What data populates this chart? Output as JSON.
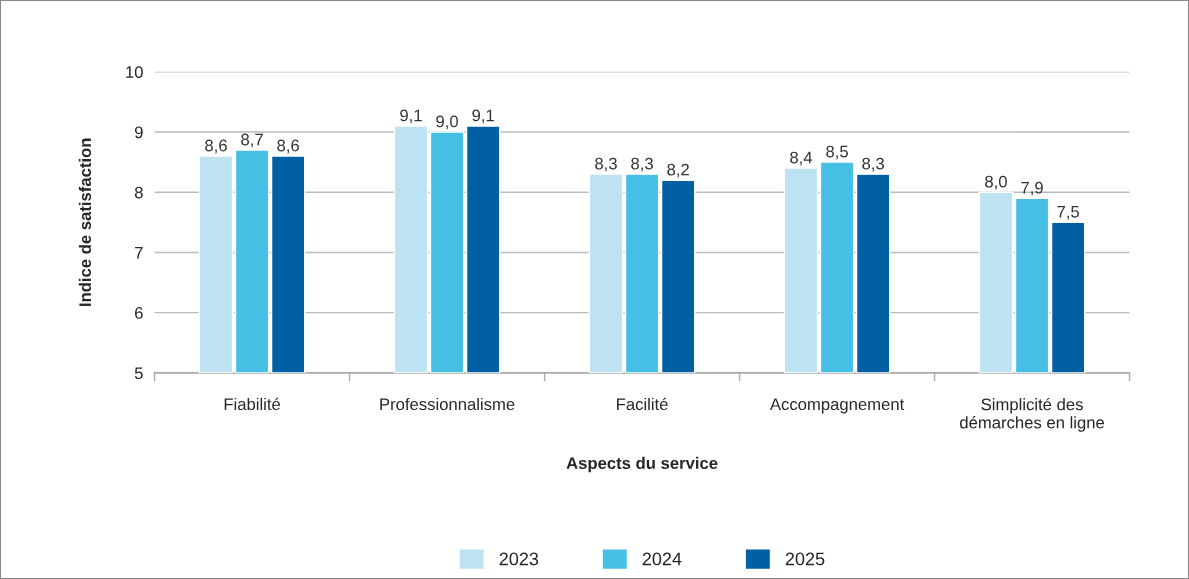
{
  "chart_data": {
    "type": "bar",
    "xlabel": "Aspects du service",
    "ylabel": "Indice de satisfaction",
    "categories": [
      "Fiabilité",
      "Professionnalisme",
      "Facilité",
      "Accompagnement",
      "Simplicité des\ndémarches en ligne"
    ],
    "series": [
      {
        "name": "2023",
        "color": "#bde3f2",
        "values": [
          8.6,
          9.1,
          8.3,
          8.4,
          8.0
        ],
        "value_labels": [
          "8,6",
          "9,1",
          "8,3",
          "8,4",
          "8,0"
        ]
      },
      {
        "name": "2024",
        "color": "#45bfe3",
        "values": [
          8.7,
          9.0,
          8.3,
          8.5,
          7.9
        ],
        "value_labels": [
          "8,7",
          "9,0",
          "8,3",
          "8,5",
          "7,9"
        ]
      },
      {
        "name": "2025",
        "color": "#0060a3",
        "values": [
          8.6,
          9.1,
          8.2,
          8.3,
          7.5
        ],
        "value_labels": [
          "8,6",
          "9,1",
          "8,2",
          "8,3",
          "7,5"
        ]
      }
    ],
    "ylim": [
      5,
      10
    ],
    "yticks": [
      5,
      6,
      7,
      8,
      9,
      10
    ],
    "grid": "y",
    "legend": "bottom"
  }
}
